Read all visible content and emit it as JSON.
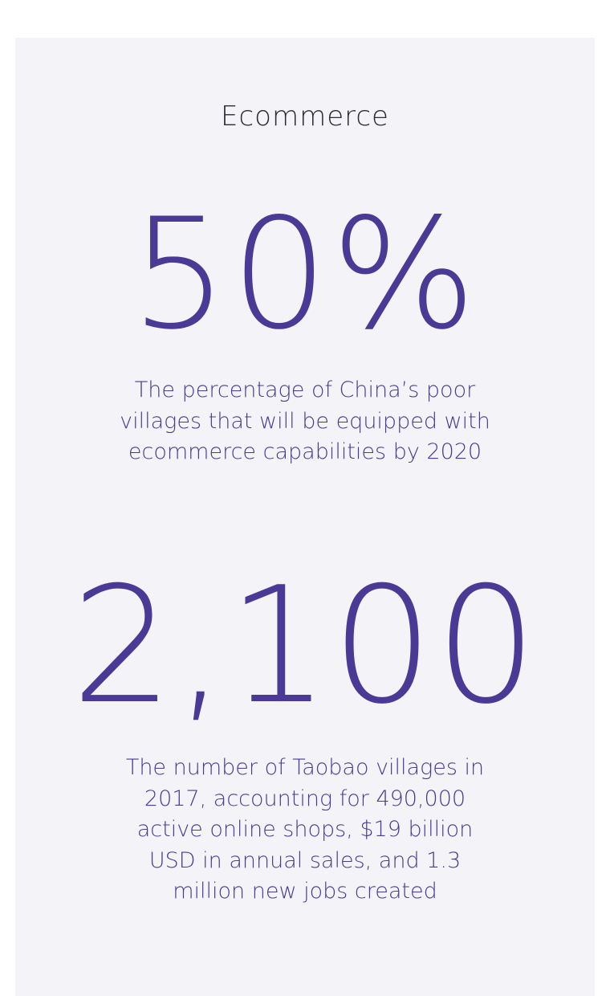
{
  "card": {
    "heading": "Ecommerce",
    "stats": [
      {
        "value": "50%",
        "description": "The percentage of China’s poor villages that will be equipped with ecommerce capabilities by 2020"
      },
      {
        "value": "2,100",
        "description": "The number of Taobao villages in 2017, accounting for 490,000 active online shops, $19 billion USD in annual sales, and 1.3 million new jobs created"
      }
    ]
  },
  "colors": {
    "background": "#ffffff",
    "card": "#f4f4f8",
    "heading": "#2b2a35",
    "accent": "#4a3a96"
  }
}
